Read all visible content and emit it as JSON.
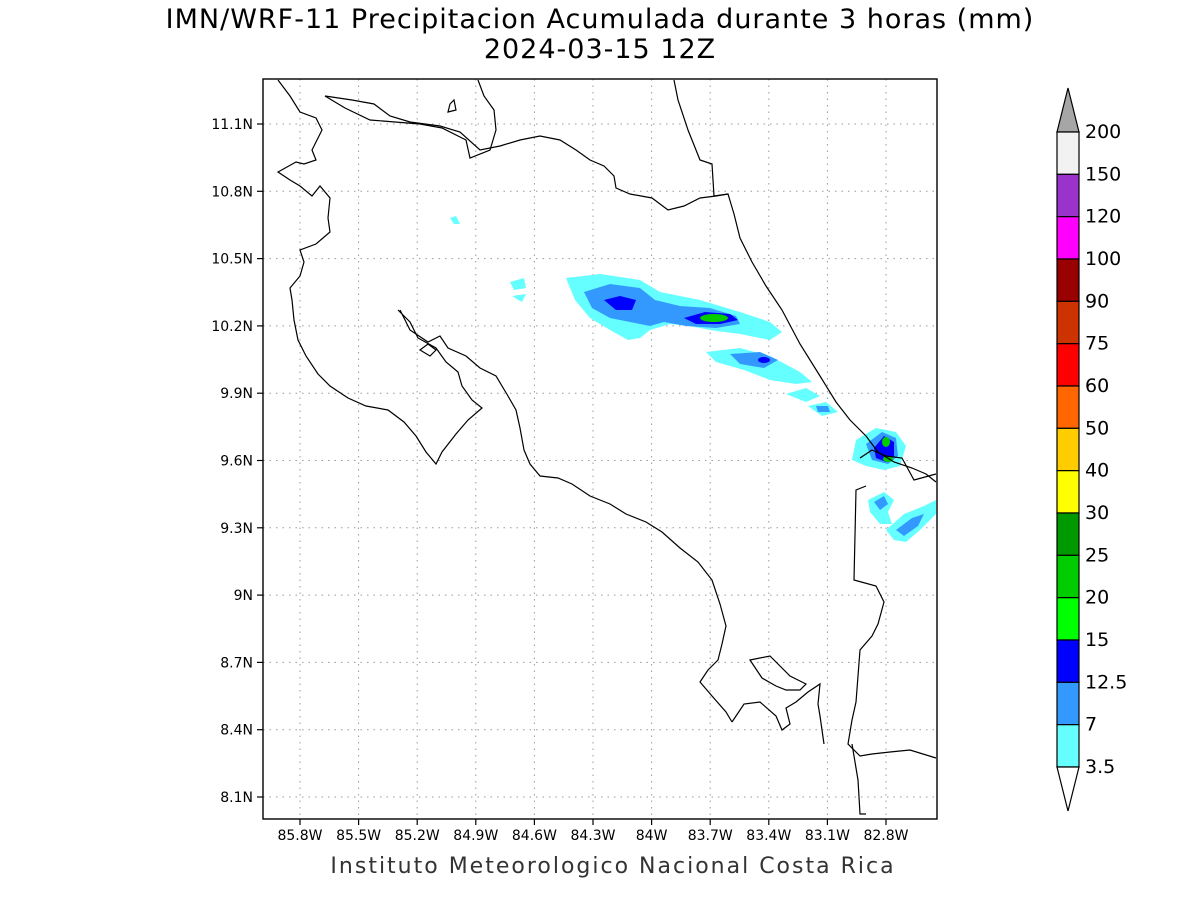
{
  "title": "IMN/WRF-11 Precipitacion Acumulada durante 3 horas (mm)",
  "subtitle": "2024-03-15 12Z",
  "credit": "Instituto Meteorologico Nacional Costa Rica",
  "lat_labels": [
    "11.1N",
    "10.8N",
    "10.5N",
    "10.2N",
    "9.9N",
    "9.6N",
    "9.3N",
    "9N",
    "8.7N",
    "8.4N",
    "8.1N"
  ],
  "lon_labels": [
    "85.8W",
    "85.5W",
    "85.2W",
    "84.9W",
    "84.6W",
    "84.3W",
    "84W",
    "83.7W",
    "83.4W",
    "83.1W",
    "82.8W"
  ],
  "colorbar": {
    "labels": [
      "200",
      "150",
      "120",
      "100",
      "90",
      "75",
      "60",
      "50",
      "40",
      "30",
      "25",
      "20",
      "15",
      "12.5",
      "7",
      "3.5"
    ],
    "colors": [
      "#f2f2f2",
      "#9933cc",
      "#ff00ff",
      "#990000",
      "#cc3300",
      "#ff0000",
      "#ff6600",
      "#ffcc00",
      "#ffff00",
      "#009900",
      "#00cc00",
      "#00ff00",
      "#0000ff",
      "#3399ff",
      "#66ffff"
    ],
    "over_color": "#a6a6a6",
    "under_color": "#ffffff"
  }
}
